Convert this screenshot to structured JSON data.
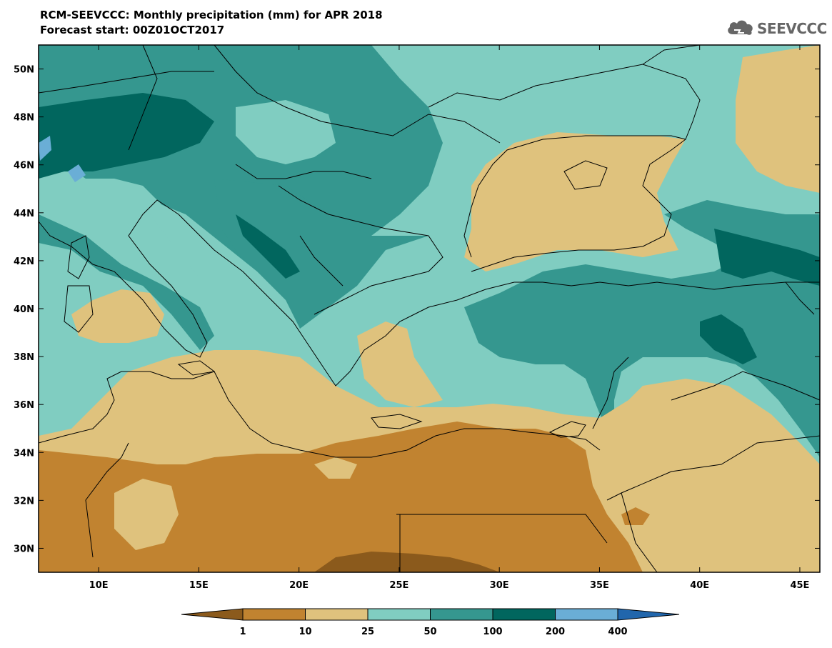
{
  "header": {
    "title": "RCM-SEEVCCC: Monthly precipitation (mm) for APR 2018",
    "subtitle": "Forecast start: 00Z01OCT2017"
  },
  "logo": {
    "text": "SEEVCCC",
    "icon": "cloud-icon"
  },
  "map": {
    "lon_ticks": [
      "10E",
      "15E",
      "20E",
      "25E",
      "30E",
      "35E",
      "40E",
      "45E"
    ],
    "lat_ticks": [
      "50N",
      "48N",
      "46N",
      "44N",
      "42N",
      "40N",
      "38N",
      "36N",
      "34N",
      "32N",
      "30N"
    ],
    "lon_range": [
      7,
      46
    ],
    "lat_range": [
      29,
      51
    ]
  },
  "legend": {
    "boundaries": [
      "1",
      "10",
      "25",
      "50",
      "100",
      "200",
      "400"
    ],
    "colors": [
      "#8b5a1c",
      "#c18330",
      "#dfc27d",
      "#80cdc1",
      "#35978f",
      "#01665e",
      "#6aaed6",
      "#2166ac"
    ]
  }
}
